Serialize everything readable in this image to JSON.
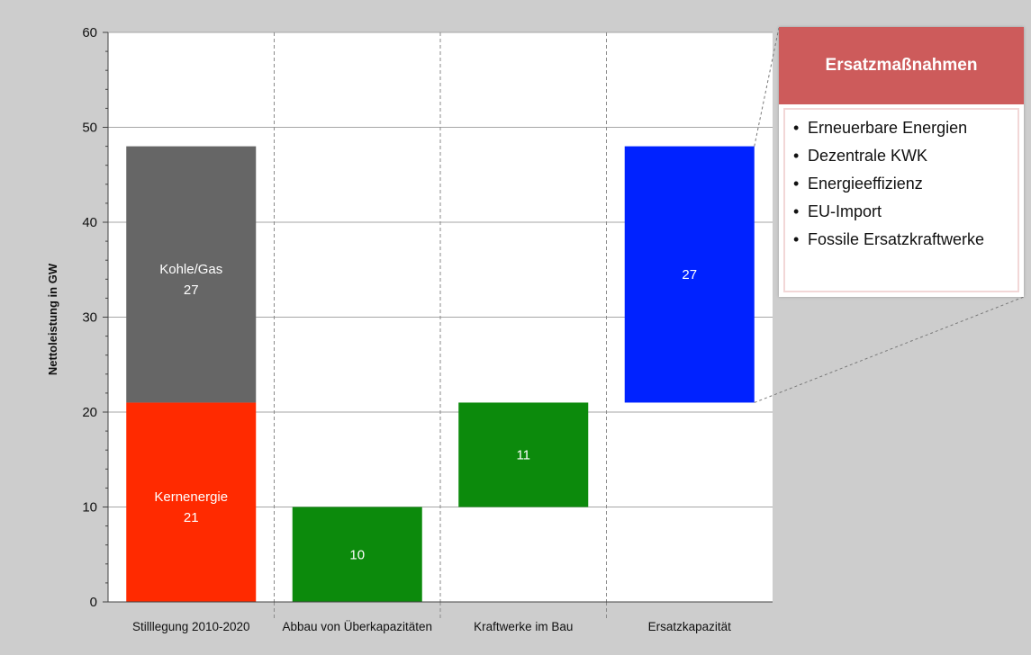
{
  "chart_data": {
    "type": "bar",
    "subtype": "waterfall",
    "title": "",
    "xlabel": "",
    "ylabel": "Nettoleistung in GW",
    "ylim": [
      0,
      60
    ],
    "yticks": [
      0,
      10,
      20,
      30,
      40,
      50,
      60
    ],
    "ytick_labels": [
      "0",
      "10",
      "20",
      "30",
      "40",
      "50",
      "60"
    ],
    "grid": "horizontal",
    "categories": [
      "Stilllegung 2010-2020",
      "Abbau von Überkapazitäten",
      "Kraftwerke im Bau",
      "Ersatzkapazität"
    ],
    "segments": [
      {
        "category": "Stilllegung 2010-2020",
        "name": "Kernenergie",
        "label": "Kernenergie",
        "value_label": "21",
        "value": 21,
        "bottom": 0,
        "top": 21,
        "color": "#ff2a00"
      },
      {
        "category": "Stilllegung 2010-2020",
        "name": "Kohle/Gas",
        "label": "Kohle/Gas",
        "value_label": "27",
        "value": 27,
        "bottom": 21,
        "top": 48,
        "color": "#666666"
      },
      {
        "category": "Abbau von Überkapazitäten",
        "name": "",
        "label": "",
        "value_label": "10",
        "value": 10,
        "bottom": 0,
        "top": 10,
        "color": "#0c8a0c"
      },
      {
        "category": "Kraftwerke im Bau",
        "name": "",
        "label": "",
        "value_label": "11",
        "value": 11,
        "bottom": 10,
        "top": 21,
        "color": "#0c8a0c"
      },
      {
        "category": "Ersatzkapazität",
        "name": "",
        "label": "",
        "value_label": "27",
        "value": 27,
        "bottom": 21,
        "top": 48,
        "color": "#0022ff"
      }
    ]
  },
  "callout": {
    "title": "Ersatzmaßnahmen",
    "items": [
      "Erneuerbare Energien",
      "Dezentrale KWK",
      "Energieeffizienz",
      "EU-Import",
      "Fossile Ersatzkraftwerke"
    ],
    "header_color": "#cd5b5b",
    "bullet": "•"
  },
  "colors": {
    "page_background": "#cdcdcd",
    "plot_background": "#ffffff",
    "gridline": "#a6a6a6"
  }
}
